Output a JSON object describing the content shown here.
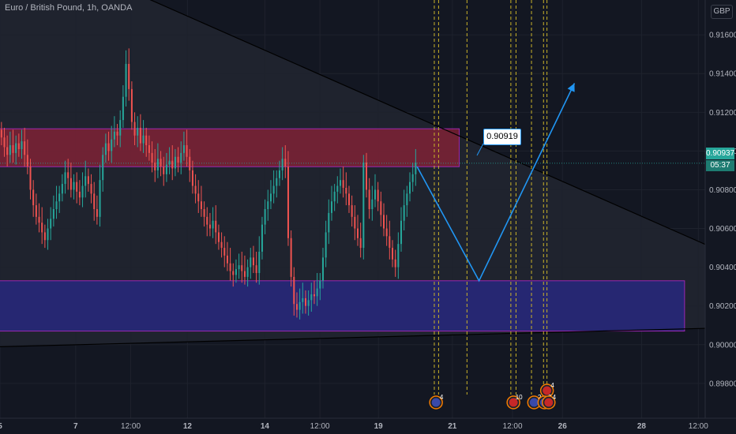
{
  "header": {
    "title": "Euro / British Pound, 1h, OANDA",
    "currency": "GBP"
  },
  "price_axis": {
    "current_price": "0.90937",
    "countdown": "05:37"
  },
  "annotation": {
    "callout": "0.90919"
  },
  "colors": {
    "background": "#131722",
    "bull": "#26a69a",
    "bear": "#ef5350",
    "resistance_zone": "#b2223a",
    "support_zone": "#2a2a8a",
    "zone_border": "#9c27b0",
    "projection": "#2196f3",
    "event_line": "#c9b22a"
  },
  "events": {
    "markers": [
      "4",
      "10",
      "2",
      "4",
      "3",
      "4"
    ]
  },
  "chart_data": {
    "type": "candlestick",
    "title": "Euro / British Pound, 1h, OANDA",
    "symbol": "EURGBP",
    "timeframe": "1h",
    "ylim": [
      0.8962,
      0.9178
    ],
    "yticks": [
      0.898,
      0.9,
      0.902,
      0.904,
      0.906,
      0.908,
      0.91,
      0.912,
      0.914,
      0.916
    ],
    "xticks": [
      "5",
      "7",
      "12:00",
      "12",
      "14",
      "12:00",
      "19",
      "21",
      "12:00",
      "26",
      "28",
      "12:00"
    ],
    "xtick_bold": [
      "5",
      "7",
      "12",
      "14",
      "19",
      "21",
      "26",
      "28"
    ],
    "xlim": [
      0,
      820
    ],
    "xtick_positions": [
      0,
      88,
      152,
      218,
      308,
      372,
      440,
      526,
      596,
      654,
      746,
      812
    ],
    "resistance_zone": [
      0.90919,
      0.91115
    ],
    "support_zone": [
      0.9007,
      0.9033
    ],
    "resistance_zone_x": [
      -80,
      534
    ],
    "support_zone_x": [
      -80,
      796
    ],
    "upper_trendline": [
      [
        -80,
        0.9228
      ],
      [
        870,
        0.9042
      ]
    ],
    "lower_trendline": [
      [
        -80,
        0.8998
      ],
      [
        870,
        0.9009
      ]
    ],
    "projection_path": [
      [
        485,
        0.90919
      ],
      [
        557,
        0.9033
      ],
      [
        668,
        0.9135
      ]
    ],
    "event_lines_x": [
      505,
      510,
      543,
      594,
      600,
      618,
      632,
      636
    ],
    "closes": [
      0.9107,
      0.9102,
      0.9098,
      0.9103,
      0.9099,
      0.9104,
      0.9101,
      0.9105,
      0.9098,
      0.9092,
      0.908,
      0.9072,
      0.9066,
      0.9063,
      0.9058,
      0.9054,
      0.906,
      0.9065,
      0.907,
      0.9074,
      0.9078,
      0.9083,
      0.9089,
      0.9086,
      0.908,
      0.9084,
      0.9079,
      0.9076,
      0.9082,
      0.9087,
      0.9083,
      0.9078,
      0.907,
      0.9066,
      0.9085,
      0.9098,
      0.9104,
      0.91,
      0.9106,
      0.911,
      0.9108,
      0.9116,
      0.9128,
      0.9145,
      0.9132,
      0.9115,
      0.9108,
      0.9112,
      0.9104,
      0.9108,
      0.9103,
      0.9099,
      0.9094,
      0.909,
      0.9096,
      0.9092,
      0.9088,
      0.9093,
      0.9095,
      0.9091,
      0.9097,
      0.9094,
      0.9099,
      0.9103,
      0.9097,
      0.909,
      0.9082,
      0.9078,
      0.9074,
      0.907,
      0.9066,
      0.9062,
      0.906,
      0.9064,
      0.9058,
      0.9053,
      0.905,
      0.9046,
      0.9042,
      0.9038,
      0.9036,
      0.9039,
      0.9041,
      0.9038,
      0.9035,
      0.904,
      0.9045,
      0.9041,
      0.9037,
      0.9048,
      0.9062,
      0.907,
      0.9074,
      0.9078,
      0.9082,
      0.9086,
      0.909,
      0.9096,
      0.9092,
      0.9055,
      0.9035,
      0.9021,
      0.9018,
      0.9022,
      0.9024,
      0.902,
      0.9023,
      0.9026,
      0.9025,
      0.9029,
      0.9033,
      0.9045,
      0.9058,
      0.9068,
      0.9074,
      0.9079,
      0.9082,
      0.9085,
      0.9081,
      0.9078,
      0.9072,
      0.9066,
      0.906,
      0.9055,
      0.905,
      0.9094,
      0.908,
      0.907,
      0.9075,
      0.908,
      0.9074,
      0.9067,
      0.906,
      0.9056,
      0.905,
      0.9044,
      0.904,
      0.9052,
      0.9064,
      0.9072,
      0.9078,
      0.9084,
      0.9088,
      0.9094
    ]
  }
}
